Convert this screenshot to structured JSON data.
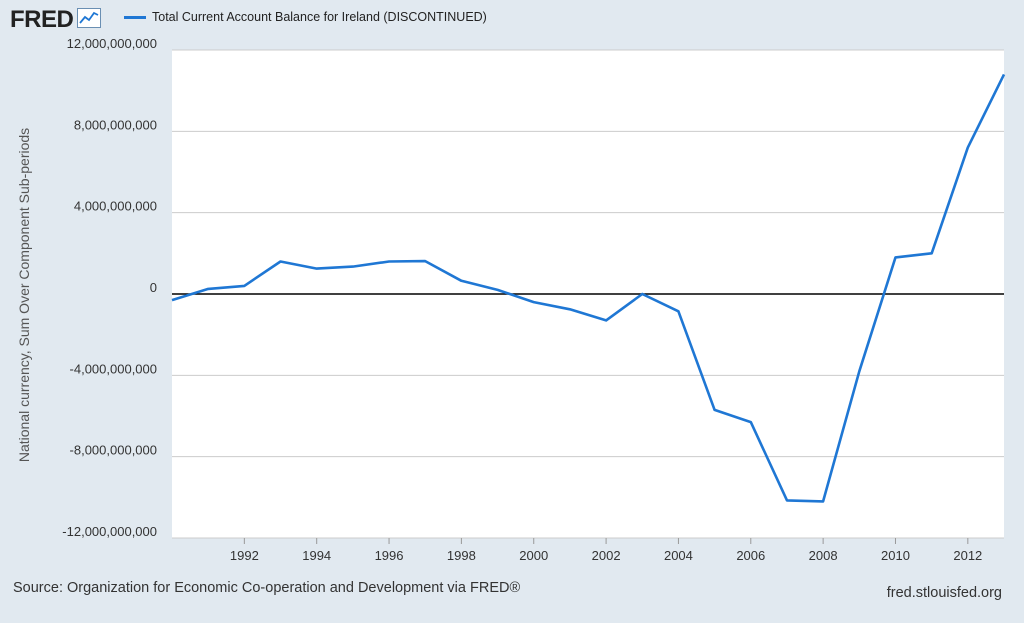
{
  "header": {
    "logo_text": "FRED",
    "logo_icon": "trend-line-icon",
    "legend_label": "Total Current Account Balance for Ireland (DISCONTINUED)"
  },
  "footer": {
    "source": "Source: Organization for Economic Co-operation and Development via FRED®",
    "url": "fred.stlouisfed.org"
  },
  "colors": {
    "series": "#1f77d4",
    "background": "#e1e9f0",
    "plot_background": "#ffffff",
    "grid": "#cccccc",
    "zero_line": "#000000"
  },
  "chart_data": {
    "type": "line",
    "title": "Total Current Account Balance for Ireland (DISCONTINUED)",
    "xlabel": "",
    "ylabel": "National currency, Sum Over Component Sub-periods",
    "xlim": [
      1990,
      2013
    ],
    "ylim": [
      -12000000000,
      12000000000
    ],
    "x_ticks": [
      1992,
      1994,
      1996,
      1998,
      2000,
      2002,
      2004,
      2006,
      2008,
      2010,
      2012
    ],
    "y_ticks": [
      -12000000000,
      -8000000000,
      -4000000000,
      0,
      4000000000,
      8000000000,
      12000000000
    ],
    "y_tick_labels": [
      "-12,000,000,000",
      "-8,000,000,000",
      "-4,000,000,000",
      "0",
      "4,000,000,000",
      "8,000,000,000",
      "12,000,000,000"
    ],
    "grid": true,
    "series": [
      {
        "name": "Total Current Account Balance for Ireland (DISCONTINUED)",
        "x": [
          1990,
          1991,
          1992,
          1993,
          1994,
          1995,
          1996,
          1997,
          1998,
          1999,
          2000,
          2001,
          2002,
          2003,
          2004,
          2005,
          2006,
          2007,
          2008,
          2009,
          2010,
          2011,
          2012,
          2013
        ],
        "values": [
          -300000000,
          250000000,
          400000000,
          1600000000,
          1250000000,
          1350000000,
          1600000000,
          1620000000,
          650000000,
          200000000,
          -400000000,
          -750000000,
          -1300000000,
          0,
          -850000000,
          -5700000000,
          -6300000000,
          -10150000000,
          -10200000000,
          -3800000000,
          1800000000,
          2000000000,
          7200000000,
          10800000000
        ]
      }
    ]
  }
}
